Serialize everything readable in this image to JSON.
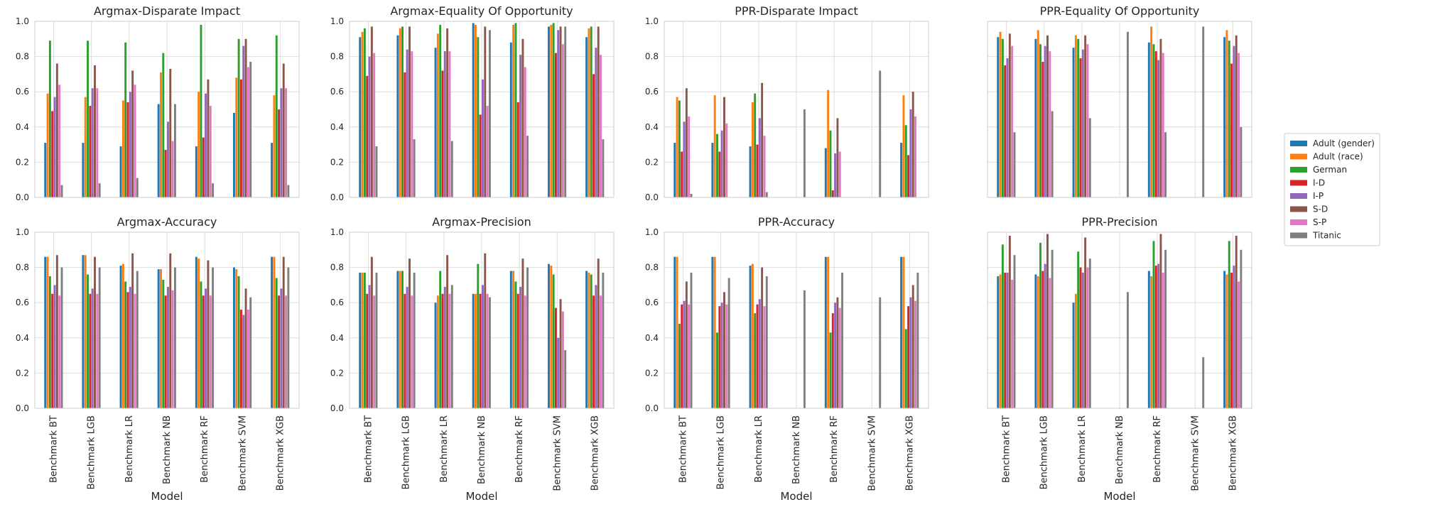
{
  "legend": {
    "entries": [
      "Adult (gender)",
      "Adult (race)",
      "German",
      "I-D",
      "I-P",
      "S-D",
      "S-P",
      "Titanic"
    ],
    "colors": [
      "#1f77b4",
      "#ff7f0e",
      "#2ca02c",
      "#d62728",
      "#9467bd",
      "#8c564b",
      "#e377c2",
      "#7f7f7f"
    ]
  },
  "chart_data": [
    {
      "type": "bar",
      "title": "Argmax-Disparate Impact",
      "xlabel": "",
      "ylim": [
        0,
        1.0
      ],
      "categories": [
        "Benchmark BT",
        "Benchmark LGB",
        "Benchmark LR",
        "Benchmark NB",
        "Benchmark RF",
        "Benchmark SVM",
        "Benchmark XGB"
      ],
      "series": [
        {
          "name": "Adult (gender)",
          "values": [
            0.31,
            0.31,
            0.29,
            0.53,
            0.29,
            0.48,
            0.31
          ]
        },
        {
          "name": "Adult (race)",
          "values": [
            0.59,
            0.57,
            0.55,
            0.71,
            0.6,
            0.68,
            0.58
          ]
        },
        {
          "name": "German",
          "values": [
            0.89,
            0.89,
            0.88,
            0.82,
            0.98,
            0.9,
            0.92
          ]
        },
        {
          "name": "I-D",
          "values": [
            0.49,
            0.52,
            0.54,
            0.27,
            0.34,
            0.67,
            0.5
          ]
        },
        {
          "name": "I-P",
          "values": [
            0.57,
            0.62,
            0.6,
            0.43,
            0.59,
            0.86,
            0.62
          ]
        },
        {
          "name": "S-D",
          "values": [
            0.76,
            0.75,
            0.72,
            0.73,
            0.67,
            0.9,
            0.76
          ]
        },
        {
          "name": "S-P",
          "values": [
            0.64,
            0.62,
            0.64,
            0.32,
            0.52,
            0.74,
            0.62
          ]
        },
        {
          "name": "Titanic",
          "values": [
            0.07,
            0.08,
            0.11,
            0.53,
            0.08,
            0.77,
            0.07
          ]
        }
      ]
    },
    {
      "type": "bar",
      "title": "Argmax-Equality Of Opportunity",
      "xlabel": "",
      "ylim": [
        0,
        1.0
      ],
      "categories": [
        "Benchmark BT",
        "Benchmark LGB",
        "Benchmark LR",
        "Benchmark NB",
        "Benchmark RF",
        "Benchmark SVM",
        "Benchmark XGB"
      ],
      "series": [
        {
          "name": "Adult (gender)",
          "values": [
            0.91,
            0.92,
            0.85,
            0.99,
            0.88,
            0.97,
            0.91
          ]
        },
        {
          "name": "Adult (race)",
          "values": [
            0.94,
            0.96,
            0.93,
            0.98,
            0.98,
            0.98,
            0.96
          ]
        },
        {
          "name": "German",
          "values": [
            0.96,
            0.97,
            0.98,
            0.91,
            0.99,
            0.99,
            0.97
          ]
        },
        {
          "name": "I-D",
          "values": [
            0.69,
            0.71,
            0.72,
            0.47,
            0.54,
            0.82,
            0.7
          ]
        },
        {
          "name": "I-P",
          "values": [
            0.8,
            0.84,
            0.83,
            0.67,
            0.81,
            0.95,
            0.85
          ]
        },
        {
          "name": "S-D",
          "values": [
            0.97,
            0.97,
            0.96,
            0.97,
            0.9,
            0.97,
            0.97
          ]
        },
        {
          "name": "S-P",
          "values": [
            0.82,
            0.83,
            0.83,
            0.52,
            0.74,
            0.87,
            0.81
          ]
        },
        {
          "name": "Titanic",
          "values": [
            0.29,
            0.33,
            0.32,
            0.95,
            0.35,
            0.97,
            0.33
          ]
        }
      ]
    },
    {
      "type": "bar",
      "title": "PPR-Disparate Impact",
      "xlabel": "",
      "ylim": [
        0,
        1.0
      ],
      "categories": [
        "Benchmark BT",
        "Benchmark LGB",
        "Benchmark LR",
        "Benchmark NB",
        "Benchmark RF",
        "Benchmark SVM",
        "Benchmark XGB"
      ],
      "series": [
        {
          "name": "Adult (gender)",
          "values": [
            0.31,
            0.31,
            0.29,
            0,
            0.28,
            0,
            0.31
          ]
        },
        {
          "name": "Adult (race)",
          "values": [
            0.57,
            0.58,
            0.54,
            0,
            0.61,
            0,
            0.58
          ]
        },
        {
          "name": "German",
          "values": [
            0.55,
            0.36,
            0.59,
            0,
            0.38,
            0,
            0.41
          ]
        },
        {
          "name": "I-D",
          "values": [
            0.26,
            0.26,
            0.3,
            0,
            0.04,
            0,
            0.24
          ]
        },
        {
          "name": "I-P",
          "values": [
            0.43,
            0.38,
            0.45,
            0,
            0.25,
            0,
            0.5
          ]
        },
        {
          "name": "S-D",
          "values": [
            0.62,
            0.57,
            0.65,
            0,
            0.45,
            0,
            0.6
          ]
        },
        {
          "name": "S-P",
          "values": [
            0.46,
            0.42,
            0.35,
            0,
            0.26,
            0,
            0.46
          ]
        },
        {
          "name": "Titanic",
          "values": [
            0.02,
            0,
            0.03,
            0.5,
            0,
            0.72,
            0
          ]
        }
      ]
    },
    {
      "type": "bar",
      "title": "PPR-Equality Of Opportunity",
      "xlabel": "",
      "ylim": [
        0,
        1.0
      ],
      "categories": [
        "Benchmark BT",
        "Benchmark LGB",
        "Benchmark LR",
        "Benchmark NB",
        "Benchmark RF",
        "Benchmark SVM",
        "Benchmark XGB"
      ],
      "series": [
        {
          "name": "Adult (gender)",
          "values": [
            0.91,
            0.9,
            0.85,
            0,
            0.88,
            0,
            0.91
          ]
        },
        {
          "name": "Adult (race)",
          "values": [
            0.94,
            0.95,
            0.92,
            0,
            0.97,
            0,
            0.95
          ]
        },
        {
          "name": "German",
          "values": [
            0.9,
            0.87,
            0.9,
            0,
            0.87,
            0,
            0.89
          ]
        },
        {
          "name": "I-D",
          "values": [
            0.75,
            0.77,
            0.79,
            0,
            0.83,
            0,
            0.76
          ]
        },
        {
          "name": "I-P",
          "values": [
            0.79,
            0.86,
            0.84,
            0,
            0.78,
            0,
            0.86
          ]
        },
        {
          "name": "S-D",
          "values": [
            0.93,
            0.92,
            0.92,
            0,
            0.9,
            0,
            0.92
          ]
        },
        {
          "name": "S-P",
          "values": [
            0.86,
            0.83,
            0.87,
            0,
            0.82,
            0,
            0.82
          ]
        },
        {
          "name": "Titanic",
          "values": [
            0.37,
            0.49,
            0.45,
            0.94,
            0.37,
            0.97,
            0.4
          ]
        }
      ]
    },
    {
      "type": "bar",
      "title": "Argmax-Accuracy",
      "xlabel": "Model",
      "ylim": [
        0,
        1.0
      ],
      "categories": [
        "Benchmark BT",
        "Benchmark LGB",
        "Benchmark LR",
        "Benchmark NB",
        "Benchmark RF",
        "Benchmark SVM",
        "Benchmark XGB"
      ],
      "series": [
        {
          "name": "Adult (gender)",
          "values": [
            0.86,
            0.87,
            0.81,
            0.79,
            0.86,
            0.8,
            0.86
          ]
        },
        {
          "name": "Adult (race)",
          "values": [
            0.86,
            0.87,
            0.82,
            0.79,
            0.85,
            0.79,
            0.86
          ]
        },
        {
          "name": "German",
          "values": [
            0.75,
            0.76,
            0.72,
            0.73,
            0.72,
            0.75,
            0.74
          ]
        },
        {
          "name": "I-D",
          "values": [
            0.65,
            0.65,
            0.66,
            0.64,
            0.64,
            0.56,
            0.64
          ]
        },
        {
          "name": "I-P",
          "values": [
            0.7,
            0.68,
            0.69,
            0.69,
            0.68,
            0.53,
            0.68
          ]
        },
        {
          "name": "S-D",
          "values": [
            0.87,
            0.86,
            0.88,
            0.88,
            0.84,
            0.68,
            0.86
          ]
        },
        {
          "name": "S-P",
          "values": [
            0.64,
            0.65,
            0.65,
            0.67,
            0.64,
            0.56,
            0.64
          ]
        },
        {
          "name": "Titanic",
          "values": [
            0.8,
            0.8,
            0.78,
            0.8,
            0.8,
            0.63,
            0.8
          ]
        }
      ]
    },
    {
      "type": "bar",
      "title": "Argmax-Precision",
      "xlabel": "Model",
      "ylim": [
        0,
        1.0
      ],
      "categories": [
        "Benchmark BT",
        "Benchmark LGB",
        "Benchmark LR",
        "Benchmark NB",
        "Benchmark RF",
        "Benchmark SVM",
        "Benchmark XGB"
      ],
      "series": [
        {
          "name": "Adult (gender)",
          "values": [
            0.77,
            0.78,
            0.6,
            0.65,
            0.78,
            0.82,
            0.78
          ]
        },
        {
          "name": "Adult (race)",
          "values": [
            0.77,
            0.78,
            0.64,
            0.65,
            0.78,
            0.81,
            0.77
          ]
        },
        {
          "name": "German",
          "values": [
            0.77,
            0.78,
            0.78,
            0.82,
            0.72,
            0.76,
            0.76
          ]
        },
        {
          "name": "I-D",
          "values": [
            0.65,
            0.65,
            0.65,
            0.65,
            0.65,
            0.57,
            0.64
          ]
        },
        {
          "name": "I-P",
          "values": [
            0.7,
            0.69,
            0.69,
            0.7,
            0.69,
            0.4,
            0.7
          ]
        },
        {
          "name": "S-D",
          "values": [
            0.86,
            0.85,
            0.87,
            0.88,
            0.85,
            0.62,
            0.85
          ]
        },
        {
          "name": "S-P",
          "values": [
            0.64,
            0.64,
            0.65,
            0.65,
            0.64,
            0.55,
            0.64
          ]
        },
        {
          "name": "Titanic",
          "values": [
            0.77,
            0.77,
            0.7,
            0.63,
            0.8,
            0.33,
            0.77
          ]
        }
      ]
    },
    {
      "type": "bar",
      "title": "PPR-Accuracy",
      "xlabel": "Model",
      "ylim": [
        0,
        1.0
      ],
      "categories": [
        "Benchmark BT",
        "Benchmark LGB",
        "Benchmark LR",
        "Benchmark NB",
        "Benchmark RF",
        "Benchmark SVM",
        "Benchmark XGB"
      ],
      "series": [
        {
          "name": "Adult (gender)",
          "values": [
            0.86,
            0.86,
            0.81,
            0,
            0.86,
            0,
            0.86
          ]
        },
        {
          "name": "Adult (race)",
          "values": [
            0.86,
            0.86,
            0.82,
            0,
            0.86,
            0,
            0.86
          ]
        },
        {
          "name": "German",
          "values": [
            0.48,
            0.43,
            0.54,
            0,
            0.43,
            0,
            0.45
          ]
        },
        {
          "name": "I-D",
          "values": [
            0.59,
            0.58,
            0.59,
            0,
            0.54,
            0,
            0.58
          ]
        },
        {
          "name": "I-P",
          "values": [
            0.61,
            0.6,
            0.62,
            0,
            0.6,
            0,
            0.63
          ]
        },
        {
          "name": "S-D",
          "values": [
            0.72,
            0.66,
            0.8,
            0,
            0.63,
            0,
            0.7
          ]
        },
        {
          "name": "S-P",
          "values": [
            0.59,
            0.59,
            0.58,
            0,
            0.57,
            0,
            0.61
          ]
        },
        {
          "name": "Titanic",
          "values": [
            0.77,
            0.74,
            0.75,
            0.67,
            0.77,
            0.63,
            0.77
          ]
        }
      ]
    },
    {
      "type": "bar",
      "title": "PPR-Precision",
      "xlabel": "Model",
      "ylim": [
        0,
        1.0
      ],
      "categories": [
        "Benchmark BT",
        "Benchmark LGB",
        "Benchmark LR",
        "Benchmark NB",
        "Benchmark RF",
        "Benchmark SVM",
        "Benchmark XGB"
      ],
      "series": [
        {
          "name": "Adult (gender)",
          "values": [
            0.75,
            0.76,
            0.6,
            0,
            0.78,
            0,
            0.78
          ]
        },
        {
          "name": "Adult (race)",
          "values": [
            0.76,
            0.75,
            0.65,
            0,
            0.75,
            0,
            0.76
          ]
        },
        {
          "name": "German",
          "values": [
            0.93,
            0.94,
            0.89,
            0,
            0.95,
            0,
            0.95
          ]
        },
        {
          "name": "I-D",
          "values": [
            0.77,
            0.78,
            0.8,
            0,
            0.81,
            0,
            0.77
          ]
        },
        {
          "name": "I-P",
          "values": [
            0.77,
            0.82,
            0.77,
            0,
            0.82,
            0,
            0.81
          ]
        },
        {
          "name": "S-D",
          "values": [
            0.98,
            0.99,
            0.97,
            0,
            0.99,
            0,
            0.98
          ]
        },
        {
          "name": "S-P",
          "values": [
            0.73,
            0.74,
            0.8,
            0,
            0.77,
            0,
            0.72
          ]
        },
        {
          "name": "Titanic",
          "values": [
            0.87,
            0.9,
            0.85,
            0.66,
            0.9,
            0.29,
            0.9
          ]
        }
      ]
    }
  ]
}
